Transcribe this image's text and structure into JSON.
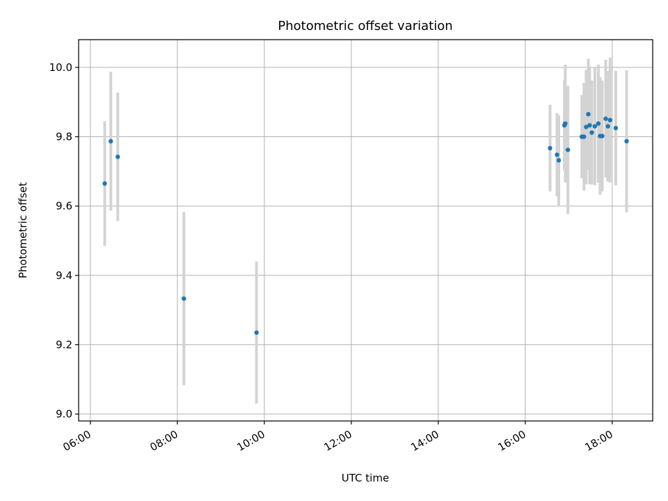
{
  "chart_data": {
    "type": "scatter",
    "title": "Photometric offset variation",
    "xlabel": "UTC time",
    "ylabel": "Photometric offset",
    "x_unit": "hours UTC",
    "xlim": [
      5.73,
      18.93
    ],
    "ylim": [
      8.98,
      10.08
    ],
    "x_ticks": [
      6,
      8,
      10,
      12,
      14,
      16,
      18
    ],
    "x_tick_labels": [
      "06:00",
      "08:00",
      "10:00",
      "12:00",
      "14:00",
      "16:00",
      "18:00"
    ],
    "y_ticks": [
      9.0,
      9.2,
      9.4,
      9.6,
      9.8,
      10.0
    ],
    "y_tick_labels": [
      "9.0",
      "9.2",
      "9.4",
      "9.6",
      "9.8",
      "10.0"
    ],
    "grid": true,
    "colors": {
      "points": "#1f77b4",
      "errorbars": "#d3d3d3",
      "grid": "#b0b0b0"
    },
    "points": [
      {
        "x": 6.33,
        "y": 9.665,
        "err": 0.18
      },
      {
        "x": 6.47,
        "y": 9.787,
        "err": 0.2
      },
      {
        "x": 6.63,
        "y": 9.742,
        "err": 0.185
      },
      {
        "x": 8.15,
        "y": 9.333,
        "err": 0.25
      },
      {
        "x": 9.82,
        "y": 9.235,
        "err": 0.205
      },
      {
        "x": 16.57,
        "y": 9.767,
        "err": 0.125
      },
      {
        "x": 16.73,
        "y": 9.748,
        "err": 0.12
      },
      {
        "x": 16.77,
        "y": 9.732,
        "err": 0.13
      },
      {
        "x": 16.9,
        "y": 9.833,
        "err": 0.13
      },
      {
        "x": 16.92,
        "y": 9.838,
        "err": 0.17
      },
      {
        "x": 16.98,
        "y": 9.762,
        "err": 0.185
      },
      {
        "x": 17.3,
        "y": 9.8,
        "err": 0.12
      },
      {
        "x": 17.35,
        "y": 9.8,
        "err": 0.155
      },
      {
        "x": 17.4,
        "y": 9.828,
        "err": 0.165
      },
      {
        "x": 17.45,
        "y": 9.865,
        "err": 0.16
      },
      {
        "x": 17.48,
        "y": 9.833,
        "err": 0.17
      },
      {
        "x": 17.53,
        "y": 9.812,
        "err": 0.15
      },
      {
        "x": 17.6,
        "y": 9.83,
        "err": 0.17
      },
      {
        "x": 17.68,
        "y": 9.838,
        "err": 0.17
      },
      {
        "x": 17.72,
        "y": 9.802,
        "err": 0.17
      },
      {
        "x": 17.77,
        "y": 9.802,
        "err": 0.16
      },
      {
        "x": 17.85,
        "y": 9.852,
        "err": 0.17
      },
      {
        "x": 17.9,
        "y": 9.83,
        "err": 0.16
      },
      {
        "x": 17.95,
        "y": 9.848,
        "err": 0.18
      },
      {
        "x": 18.08,
        "y": 9.825,
        "err": 0.165
      },
      {
        "x": 18.33,
        "y": 9.787,
        "err": 0.205
      }
    ]
  }
}
